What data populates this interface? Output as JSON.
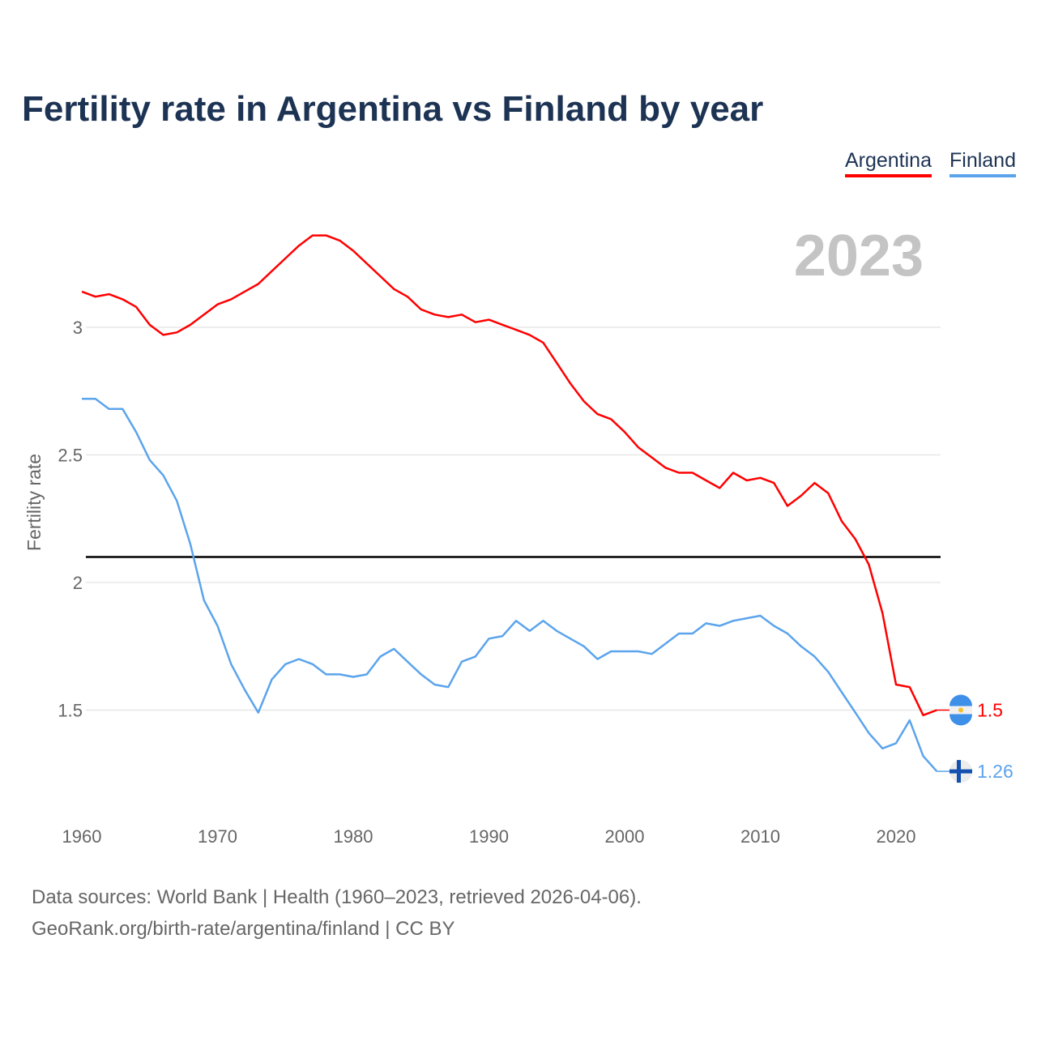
{
  "title": "Fertility rate in Argentina vs Finland by year",
  "year_label": "2023",
  "source_lines": [
    "Data sources: World Bank | Health (1960–2023, retrieved 2026-04-06).",
    "GeoRank.org/birth-rate/argentina/finland | CC BY"
  ],
  "chart_data": {
    "type": "line",
    "title": "Fertility rate in Argentina vs Finland by year",
    "xlabel": "",
    "ylabel": "Fertility rate",
    "xlim": [
      1960,
      2023
    ],
    "ylim": [
      1.15,
      3.4
    ],
    "xticks": [
      1960,
      1970,
      1980,
      1990,
      2000,
      2010,
      2020
    ],
    "yticks": [
      1.5,
      2,
      2.5,
      3
    ],
    "ytick_labels": [
      "1.5",
      "2",
      "2.5",
      "3"
    ],
    "grid": true,
    "legend_placement": "top-right",
    "reference_line": 2.1,
    "x_start": 1960,
    "series": [
      {
        "name": "Argentina",
        "color": "#ff0000",
        "end_label": "1.5",
        "values": [
          3.14,
          3.12,
          3.13,
          3.11,
          3.08,
          3.01,
          2.97,
          2.98,
          3.01,
          3.05,
          3.09,
          3.11,
          3.14,
          3.17,
          3.22,
          3.27,
          3.32,
          3.36,
          3.36,
          3.34,
          3.3,
          3.25,
          3.2,
          3.15,
          3.12,
          3.07,
          3.05,
          3.04,
          3.05,
          3.02,
          3.03,
          3.01,
          2.99,
          2.97,
          2.94,
          2.86,
          2.78,
          2.71,
          2.66,
          2.64,
          2.59,
          2.53,
          2.49,
          2.45,
          2.43,
          2.43,
          2.4,
          2.37,
          2.43,
          2.4,
          2.41,
          2.39,
          2.3,
          2.34,
          2.39,
          2.35,
          2.24,
          2.17,
          2.07,
          1.88,
          1.6,
          1.59,
          1.48,
          1.5
        ]
      },
      {
        "name": "Finland",
        "color": "#5ba4ec",
        "end_label": "1.26",
        "values": [
          2.72,
          2.72,
          2.68,
          2.68,
          2.59,
          2.48,
          2.42,
          2.32,
          2.15,
          1.93,
          1.83,
          1.68,
          1.58,
          1.49,
          1.62,
          1.68,
          1.7,
          1.68,
          1.64,
          1.64,
          1.63,
          1.64,
          1.71,
          1.74,
          1.69,
          1.64,
          1.6,
          1.59,
          1.69,
          1.71,
          1.78,
          1.79,
          1.85,
          1.81,
          1.85,
          1.81,
          1.78,
          1.75,
          1.7,
          1.73,
          1.73,
          1.73,
          1.72,
          1.76,
          1.8,
          1.8,
          1.84,
          1.83,
          1.85,
          1.86,
          1.87,
          1.83,
          1.8,
          1.75,
          1.71,
          1.65,
          1.57,
          1.49,
          1.41,
          1.35,
          1.37,
          1.46,
          1.32,
          1.26
        ]
      }
    ]
  }
}
